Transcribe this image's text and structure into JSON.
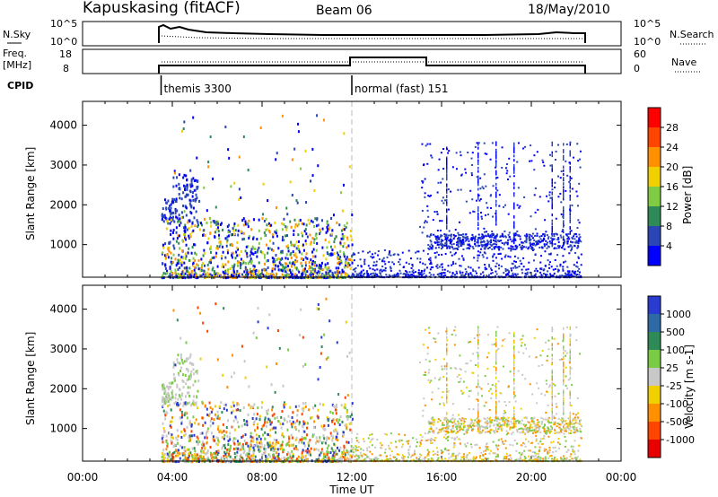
{
  "header": {
    "station": "Kapuskasing (fitACF)",
    "beam": "Beam 06",
    "date": "18/May/2010"
  },
  "top_panels": {
    "nsky_label": "N.Sky",
    "nsky_ticks": [
      "10^5",
      "10^0"
    ],
    "nsearch_label": "N.Search",
    "nsearch_ticks": [
      "10^5",
      "10^0"
    ],
    "freq_label_line1": "Freq.",
    "freq_label_line2": "[MHz]",
    "freq_ticks": [
      "18",
      "8"
    ],
    "nave_label": "Nave",
    "nave_ticks": [
      "60",
      "0"
    ],
    "cpid_label": "CPID",
    "cpid_segments": [
      {
        "label": "themis 3300",
        "start_hour": 3.5
      },
      {
        "label": "normal (fast) 151",
        "start_hour": 12.0
      }
    ]
  },
  "chart_data": [
    {
      "type": "heatmap",
      "title": "",
      "quantity": "Power",
      "ylabel": "Slant Range [km]",
      "xlabel": "",
      "x_range_hours": [
        0,
        24
      ],
      "ylim": [
        180,
        4600
      ],
      "y_ticks": [
        "1000",
        "2000",
        "3000",
        "4000"
      ],
      "colorbar_label": "Power [dB]",
      "colorbar_ticks": [
        "4",
        "8",
        "12",
        "16",
        "20",
        "24",
        "28"
      ],
      "colorbar_colors": [
        "#0000ff",
        "#2a46b4",
        "#2e8b57",
        "#7fcc44",
        "#f0d000",
        "#ff9000",
        "#ff4500",
        "#ff0000"
      ],
      "data_coverage_hours": [
        3.5,
        22.2
      ]
    },
    {
      "type": "heatmap",
      "title": "",
      "quantity": "Velocity",
      "ylabel": "Slant Range [km]",
      "xlabel": "Time UT",
      "x_range_hours": [
        0,
        24
      ],
      "ylim": [
        180,
        4600
      ],
      "y_ticks": [
        "1000",
        "2000",
        "3000",
        "4000"
      ],
      "x_ticks": [
        "00:00",
        "04:00",
        "08:00",
        "12:00",
        "16:00",
        "20:00",
        "00:00"
      ],
      "colorbar_label": "Velocity [m s-1]",
      "colorbar_ticks": [
        "1000",
        "500",
        "100",
        "25",
        "-25",
        "-100",
        "-500",
        "-1000"
      ],
      "colorbar_colors": [
        "#2a3bd0",
        "#2e6aa6",
        "#2e8b57",
        "#7acc44",
        "#c8c8c8",
        "#f0d000",
        "#ff9000",
        "#ff4500",
        "#e80000"
      ],
      "data_coverage_hours": [
        3.5,
        22.2
      ]
    }
  ]
}
